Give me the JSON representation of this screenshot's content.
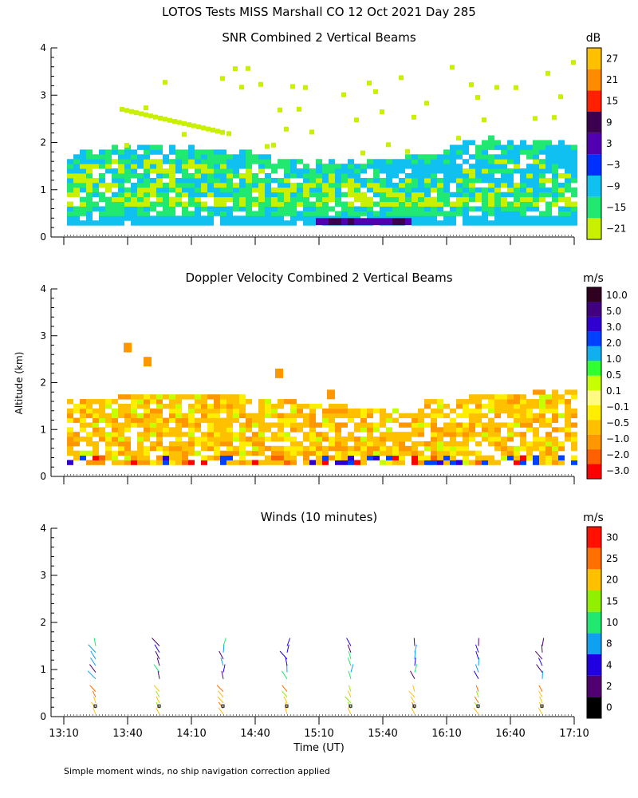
{
  "page_title": "LOTOS Tests MISS Marshall CO  12 Oct 2021 Day 285",
  "footer_note": "Simple moment winds, no ship navigation correction applied",
  "shared_axes": {
    "ylabel": "Altitude (km)",
    "xlabel": "Time (UT)",
    "x_ticks": [
      "13:10",
      "13:40",
      "14:10",
      "14:40",
      "15:10",
      "15:40",
      "16:10",
      "16:40",
      "17:10"
    ],
    "y_ticks": [
      "0",
      "1",
      "2",
      "3",
      "4"
    ]
  },
  "colors": {
    "snr": [
      "#c8f000",
      "#20e870",
      "#10c0f0",
      "#0030ff",
      "#5000b0",
      "#3c0050",
      "#ff2000",
      "#ff8c00",
      "#ffc000"
    ],
    "velocity": [
      "#ff0000",
      "#ff6000",
      "#ff9800",
      "#ffc000",
      "#ffee00",
      "#fffa80",
      "#c8ff00",
      "#30ff30",
      "#10b0f0",
      "#0040ff",
      "#3000d0",
      "#400080",
      "#300020"
    ],
    "winds": [
      "#000000",
      "#500070",
      "#2000e0",
      "#10a0f0",
      "#20e870",
      "#90f000",
      "#ffc000",
      "#ff7000",
      "#ff1000"
    ]
  },
  "chart_data": [
    {
      "type": "heatmap",
      "title": "SNR Combined 2 Vertical Beams",
      "colorbar_unit": "dB",
      "colorbar_labels": [
        "27",
        "21",
        "15",
        "9",
        "3",
        "−3",
        "−9",
        "−15",
        "−21"
      ],
      "ylim": [
        0,
        4
      ],
      "xlim": [
        "13:10",
        "17:10"
      ],
      "value_range": [
        -21,
        27
      ]
    },
    {
      "type": "heatmap",
      "title": "Doppler Velocity Combined 2 Vertical Beams",
      "colorbar_unit": "m/s",
      "colorbar_labels": [
        "10.0",
        "5.0",
        "3.0",
        "2.0",
        "1.0",
        "0.5",
        "0.1",
        "−0.1",
        "−0.5",
        "−1.0",
        "−2.0",
        "−3.0"
      ],
      "ylim": [
        0,
        4
      ],
      "xlim": [
        "13:10",
        "17:10"
      ],
      "value_range": [
        -3.0,
        10.0
      ]
    },
    {
      "type": "scatter",
      "title": "Winds (10 minutes)",
      "colorbar_unit": "m/s",
      "colorbar_labels": [
        "30",
        "25",
        "20",
        "15",
        "10",
        "8",
        "4",
        "2",
        "0"
      ],
      "ylim": [
        0,
        4
      ],
      "xlim": [
        "13:10",
        "17:10"
      ],
      "profile_times": [
        "13:25",
        "13:55",
        "14:25",
        "14:55",
        "15:25",
        "15:55",
        "16:25",
        "16:55"
      ]
    }
  ]
}
